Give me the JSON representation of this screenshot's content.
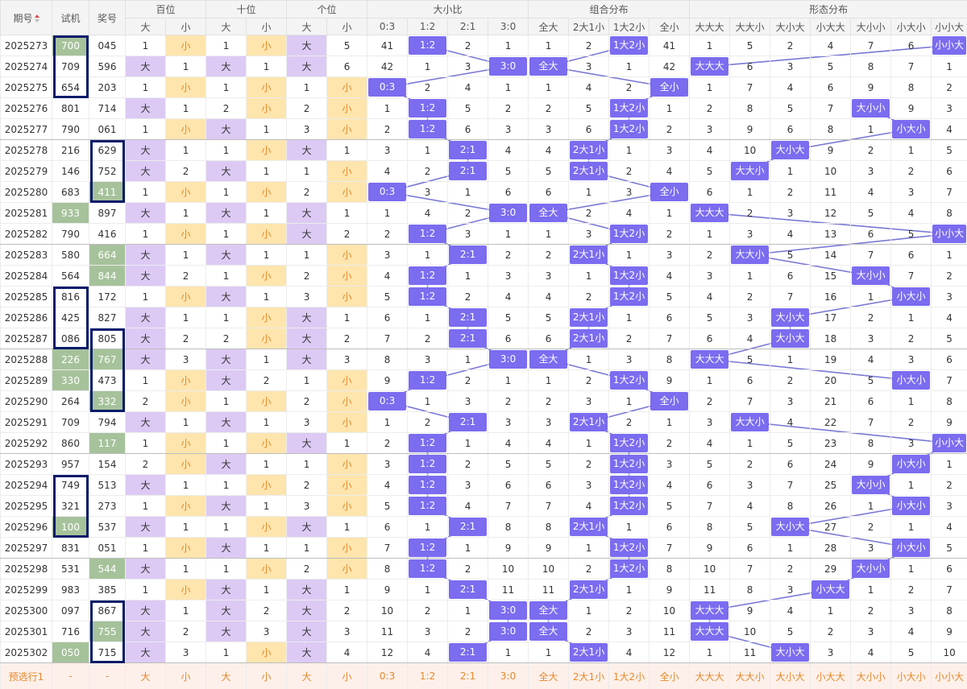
{
  "header": {
    "fixed": [
      "期号",
      "试机",
      "奖号"
    ],
    "groups": [
      {
        "name": "百位",
        "cols": [
          "大",
          "小"
        ]
      },
      {
        "name": "十位",
        "cols": [
          "大",
          "小"
        ]
      },
      {
        "name": "个位",
        "cols": [
          "大",
          "小"
        ]
      },
      {
        "name": "大小比",
        "cols": [
          "0:3",
          "1:2",
          "2:1",
          "3:0"
        ]
      },
      {
        "name": "组合分布",
        "cols": [
          "全大",
          "2大1小",
          "1大2小",
          "全小"
        ]
      },
      {
        "name": "形态分布",
        "cols": [
          "大大大",
          "大大小",
          "大小大",
          "小大大",
          "大小小",
          "小大小",
          "小小大"
        ]
      }
    ]
  },
  "rows": [
    [
      "2025273",
      "700",
      "045",
      1,
      "小",
      1,
      "小",
      "大",
      5,
      41,
      "1:2",
      2,
      1,
      1,
      2,
      "1大2小",
      41,
      1,
      5,
      2,
      4,
      7,
      6,
      "小小大"
    ],
    [
      "2025274",
      "709",
      "596",
      "大",
      1,
      "大",
      1,
      "大",
      6,
      42,
      1,
      3,
      "3:0",
      "全大",
      3,
      1,
      42,
      "大大大",
      6,
      3,
      5,
      8,
      7,
      1
    ],
    [
      "2025275",
      "654",
      "203",
      1,
      "小",
      1,
      "小",
      1,
      "小",
      "0:3",
      2,
      4,
      1,
      1,
      4,
      2,
      "全小",
      1,
      7,
      4,
      6,
      9,
      8,
      2
    ],
    [
      "2025276",
      "801",
      "714",
      "大",
      1,
      2,
      "小",
      2,
      "小",
      1,
      "1:2",
      5,
      2,
      2,
      5,
      "1大2小",
      1,
      2,
      8,
      5,
      7,
      "大小小",
      9,
      3
    ],
    [
      "2025277",
      "790",
      "061",
      1,
      "小",
      "大",
      1,
      3,
      "小",
      2,
      "1:2",
      6,
      3,
      3,
      6,
      "1大2小",
      2,
      3,
      9,
      6,
      8,
      1,
      "小大小",
      4
    ],
    [
      "2025278",
      "216",
      "629",
      "大",
      1,
      1,
      "小",
      "大",
      1,
      3,
      1,
      "2:1",
      4,
      4,
      "2大1小",
      1,
      3,
      4,
      10,
      "大小大",
      9,
      2,
      1,
      5
    ],
    [
      "2025279",
      "146",
      "752",
      "大",
      2,
      "大",
      1,
      1,
      "小",
      4,
      2,
      "2:1",
      5,
      5,
      "2大1小",
      2,
      4,
      5,
      "大大小",
      1,
      10,
      3,
      2,
      6
    ],
    [
      "2025280",
      "683",
      "411",
      1,
      "小",
      1,
      "小",
      2,
      "小",
      "0:3",
      3,
      1,
      6,
      6,
      1,
      3,
      "全小",
      6,
      1,
      2,
      11,
      4,
      3,
      7
    ],
    [
      "2025281",
      "933",
      "897",
      "大",
      1,
      "大",
      1,
      "大",
      1,
      1,
      4,
      2,
      "3:0",
      "全大",
      2,
      4,
      1,
      "大大大",
      2,
      3,
      12,
      5,
      4,
      8
    ],
    [
      "2025282",
      "790",
      "416",
      1,
      "小",
      1,
      "小",
      "大",
      2,
      2,
      "1:2",
      3,
      1,
      1,
      3,
      "1大2小",
      2,
      1,
      3,
      4,
      13,
      6,
      5,
      "小小大"
    ],
    [
      "2025283",
      "580",
      "664",
      "大",
      1,
      "大",
      1,
      1,
      "小",
      3,
      1,
      "2:1",
      2,
      2,
      "2大1小",
      1,
      3,
      2,
      "大大小",
      5,
      14,
      7,
      6,
      1
    ],
    [
      "2025284",
      "564",
      "844",
      "大",
      2,
      1,
      "小",
      2,
      "小",
      4,
      "1:2",
      1,
      3,
      3,
      1,
      "1大2小",
      4,
      3,
      1,
      6,
      15,
      "大小小",
      7,
      2
    ],
    [
      "2025285",
      "816",
      "172",
      1,
      "小",
      "大",
      1,
      3,
      "小",
      5,
      "1:2",
      2,
      4,
      4,
      2,
      "1大2小",
      5,
      4,
      2,
      7,
      16,
      1,
      "小大小",
      3
    ],
    [
      "2025286",
      "425",
      "827",
      "大",
      1,
      1,
      "小",
      "大",
      1,
      6,
      1,
      "2:1",
      5,
      5,
      "2大1小",
      1,
      6,
      5,
      3,
      "大小大",
      17,
      2,
      1,
      4
    ],
    [
      "2025287",
      "086",
      "805",
      "大",
      2,
      2,
      "小",
      "大",
      2,
      7,
      2,
      "2:1",
      6,
      6,
      "2大1小",
      2,
      7,
      6,
      4,
      "大小大",
      18,
      3,
      2,
      5
    ],
    [
      "2025288",
      "226",
      "767",
      "大",
      3,
      "大",
      1,
      "大",
      3,
      8,
      3,
      1,
      "3:0",
      "全大",
      1,
      3,
      8,
      "大大大",
      5,
      1,
      19,
      4,
      3,
      6
    ],
    [
      "2025289",
      "330",
      "473",
      1,
      "小",
      "大",
      2,
      1,
      "小",
      9,
      "1:2",
      2,
      1,
      1,
      2,
      "1大2小",
      9,
      1,
      6,
      2,
      20,
      5,
      "小大小",
      7
    ],
    [
      "2025290",
      "264",
      "332",
      2,
      "小",
      1,
      "小",
      2,
      "小",
      "0:3",
      1,
      3,
      2,
      2,
      3,
      1,
      "全小",
      2,
      7,
      3,
      21,
      6,
      1,
      8
    ],
    [
      "2025291",
      "709",
      "794",
      "大",
      1,
      "大",
      1,
      3,
      "小",
      1,
      2,
      "2:1",
      3,
      3,
      "2大1小",
      2,
      1,
      3,
      "大大小",
      4,
      22,
      7,
      2,
      9
    ],
    [
      "2025292",
      "860",
      "117",
      1,
      "小",
      1,
      "小",
      "大",
      1,
      2,
      "1:2",
      1,
      4,
      4,
      1,
      "1大2小",
      2,
      4,
      1,
      5,
      23,
      8,
      3,
      "小小大"
    ],
    [
      "2025293",
      "957",
      "154",
      2,
      "小",
      "大",
      1,
      1,
      "小",
      3,
      "1:2",
      2,
      5,
      5,
      2,
      "1大2小",
      3,
      5,
      2,
      6,
      24,
      9,
      "小大小",
      1
    ],
    [
      "2025294",
      "749",
      "513",
      "大",
      1,
      1,
      "小",
      2,
      "小",
      4,
      "1:2",
      3,
      6,
      6,
      3,
      "1大2小",
      4,
      6,
      3,
      7,
      25,
      "大小小",
      1,
      2
    ],
    [
      "2025295",
      "321",
      "273",
      1,
      "小",
      "大",
      1,
      3,
      "小",
      5,
      "1:2",
      4,
      7,
      7,
      4,
      "1大2小",
      5,
      7,
      4,
      8,
      26,
      1,
      "小大小",
      3
    ],
    [
      "2025296",
      "100",
      "537",
      "大",
      1,
      1,
      "小",
      "大",
      1,
      6,
      1,
      "2:1",
      8,
      8,
      "2大1小",
      1,
      6,
      8,
      5,
      "大小大",
      27,
      2,
      1,
      4
    ],
    [
      "2025297",
      "831",
      "051",
      1,
      "小",
      "大",
      1,
      1,
      "小",
      7,
      "1:2",
      1,
      9,
      9,
      1,
      "1大2小",
      7,
      9,
      6,
      1,
      28,
      3,
      "小大小",
      5
    ],
    [
      "2025298",
      "531",
      "544",
      "大",
      1,
      1,
      "小",
      2,
      "小",
      8,
      "1:2",
      2,
      10,
      10,
      2,
      "1大2小",
      8,
      10,
      7,
      2,
      29,
      "大小小",
      1,
      6
    ],
    [
      "2025299",
      "983",
      "385",
      1,
      "小",
      "大",
      1,
      "大",
      1,
      9,
      1,
      "2:1",
      11,
      11,
      "2大1小",
      1,
      9,
      11,
      8,
      3,
      "小大大",
      1,
      2,
      7
    ],
    [
      "2025300",
      "097",
      "867",
      "大",
      1,
      "大",
      2,
      "大",
      2,
      10,
      2,
      1,
      "3:0",
      "全大",
      1,
      2,
      10,
      "大大大",
      9,
      4,
      1,
      2,
      3,
      8
    ],
    [
      "2025301",
      "716",
      "755",
      "大",
      2,
      "大",
      3,
      "大",
      3,
      11,
      3,
      2,
      "3:0",
      "全大",
      2,
      3,
      11,
      "大大大",
      10,
      5,
      2,
      3,
      4,
      9
    ],
    [
      "2025302",
      "050",
      "715",
      "大",
      3,
      1,
      "小",
      "大",
      4,
      12,
      4,
      "2:1",
      1,
      1,
      "2大1小",
      4,
      12,
      1,
      11,
      "大小大",
      3,
      4,
      5,
      10
    ]
  ],
  "footer": [
    "预选行1",
    "-",
    "-",
    "大",
    "小",
    "大",
    "小",
    "大",
    "小",
    "0:3",
    "1:2",
    "2:1",
    "3:0",
    "全大",
    "2大1小",
    "1大2小",
    "全小",
    "大大大",
    "大大小",
    "大小大",
    "小大大",
    "大小小",
    "小大小",
    "小小大"
  ]
}
